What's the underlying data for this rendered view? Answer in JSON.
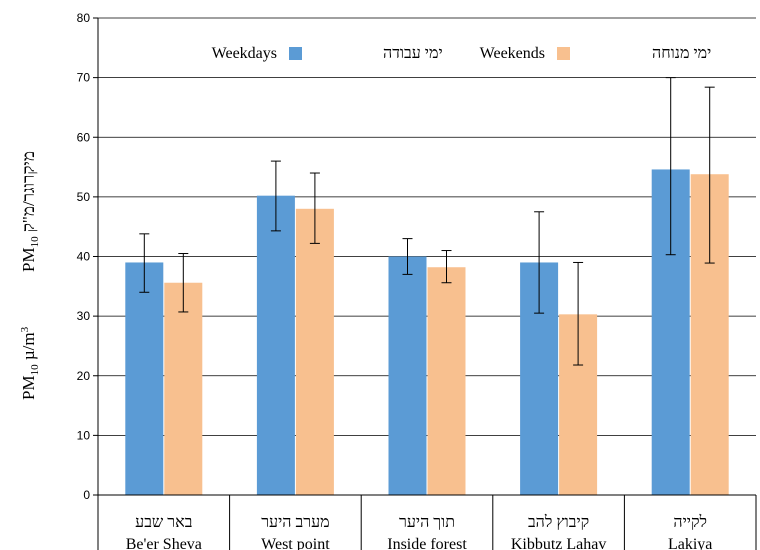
{
  "chart_data": {
    "type": "bar",
    "categories": [
      {
        "hebrew": "באר שבע",
        "english": "Be'er Sheva"
      },
      {
        "hebrew": "מערב היער",
        "english": "West point"
      },
      {
        "hebrew": "תוך היער",
        "english": "Inside forest"
      },
      {
        "hebrew": "קיבוץ להב",
        "english": "Kibbutz Lahav"
      },
      {
        "hebrew": "לקייה",
        "english": "Lakiya"
      }
    ],
    "series": [
      {
        "name": "Weekdays",
        "name_hebrew": "ימי עבודה",
        "color": "#5b9bd5",
        "values": [
          39,
          50.2,
          40,
          39,
          54.6
        ],
        "error_low": [
          34,
          44.3,
          37,
          30.5,
          40.3
        ],
        "error_high": [
          43.8,
          56,
          43,
          47.5,
          70
        ]
      },
      {
        "name": "Weekends",
        "name_hebrew": "ימי מנוחה",
        "color": "#f8c08f",
        "values": [
          35.6,
          48,
          38.2,
          30.3,
          53.8
        ],
        "error_low": [
          30.7,
          42.2,
          35.6,
          21.8,
          38.9
        ],
        "error_high": [
          40.5,
          54,
          41,
          39,
          68.4
        ]
      }
    ],
    "ylabel": {
      "hebrew_prefix": "PM",
      "hebrew_sub": "10",
      "hebrew_suffix": " מיקרוגר/מ\"ק",
      "english_prefix": "PM",
      "english_sub": "10",
      "english_mid": " µ/m",
      "english_sup": "3"
    },
    "yticks": [
      "0",
      "10",
      "20",
      "30",
      "40",
      "50",
      "60",
      "70",
      "80"
    ],
    "ylim": [
      0,
      80
    ],
    "grid": true,
    "legend_position": "top-center"
  }
}
